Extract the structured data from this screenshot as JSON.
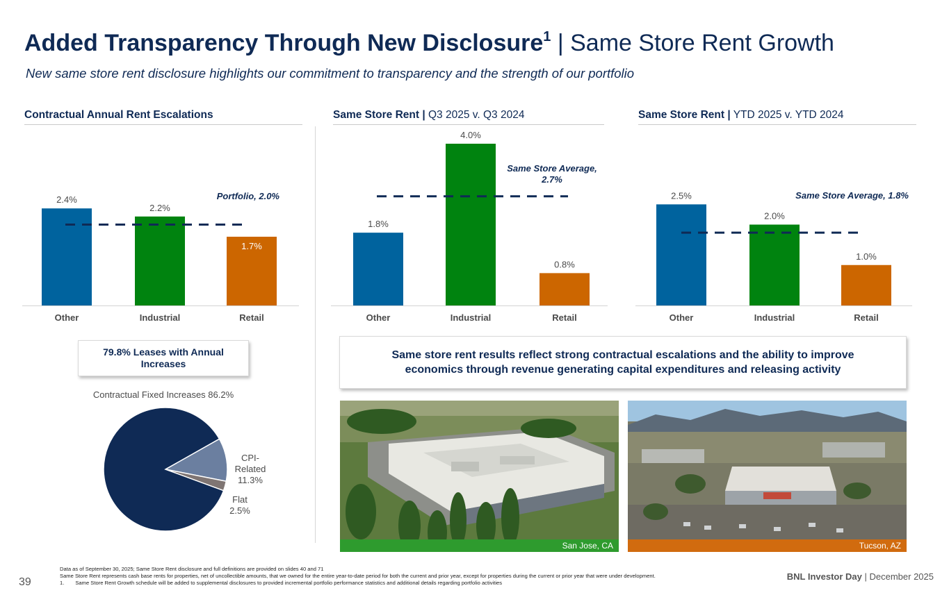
{
  "header": {
    "title_bold": "Added Transparency Through New Disclosure",
    "title_sup": "1",
    "title_rest": " | Same Store Rent Growth",
    "subtitle": "New same store rent disclosure highlights our commitment to transparency and the strength of our portfolio"
  },
  "colors": {
    "other": "#00639e",
    "industrial": "#00830f",
    "retail": "#cc6600",
    "navy": "#0f2a55",
    "slate": "#6b7fa0",
    "gray": "#7f7573"
  },
  "sections": {
    "escalations": {
      "title": "Contractual Annual Rent Escalations"
    },
    "q3": {
      "title_bold": "Same Store Rent |",
      "title_rest": " Q3 2025 v. Q3 2024"
    },
    "ytd": {
      "title_bold": "Same Store Rent |",
      "title_rest": " YTD 2025 v. YTD 2024"
    }
  },
  "chart_data": [
    {
      "type": "bar",
      "title": "Contractual Annual Rent Escalations",
      "categories": [
        "Other",
        "Industrial",
        "Retail"
      ],
      "values": [
        2.4,
        2.2,
        1.7
      ],
      "value_labels": [
        "2.4%",
        "2.2%",
        "1.7%"
      ],
      "ylim": [
        0,
        4.0
      ],
      "reference_line": {
        "value": 2.0,
        "label": "Portfolio, 2.0%"
      }
    },
    {
      "type": "bar",
      "title": "Same Store Rent | Q3 2025 v. Q3 2024",
      "categories": [
        "Other",
        "Industrial",
        "Retail"
      ],
      "values": [
        1.8,
        4.0,
        0.8
      ],
      "value_labels": [
        "1.8%",
        "4.0%",
        "0.8%"
      ],
      "ylim": [
        0,
        4.0
      ],
      "reference_line": {
        "value": 2.7,
        "label_line1": "Same Store Average,",
        "label_line2": "2.7%"
      }
    },
    {
      "type": "bar",
      "title": "Same Store Rent | YTD 2025 v. YTD 2024",
      "categories": [
        "Other",
        "Industrial",
        "Retail"
      ],
      "values": [
        2.5,
        2.0,
        1.0
      ],
      "value_labels": [
        "2.5%",
        "2.0%",
        "1.0%"
      ],
      "ylim": [
        0,
        4.0
      ],
      "reference_line": {
        "value": 1.8,
        "label": "Same Store Average, 1.8%"
      }
    },
    {
      "type": "pie",
      "title": "79.8% Leases with Annual Increases",
      "slices": [
        {
          "label": "Contractual Fixed Increases 86.2%",
          "value": 86.2
        },
        {
          "label_lines": [
            "CPI-",
            "Related",
            "11.3%"
          ],
          "value": 11.3
        },
        {
          "label_lines": [
            "Flat",
            "2.5%"
          ],
          "value": 2.5
        }
      ]
    }
  ],
  "callouts": {
    "leases": "79.8% Leases with Annual Increases",
    "results": "Same store rent results reflect strong contractual escalations and the ability to improve economics through revenue generating capital expenditures and releasing activity"
  },
  "photos": [
    {
      "caption": "San Jose, CA"
    },
    {
      "caption": "Tucson, AZ"
    }
  ],
  "footnotes": {
    "line1": "Data as of September 30, 2025; Same Store Rent disclosure and full definitions are provided on slides 40 and 71",
    "line2": "Same Store Rent represents cash base rents for properties, net of uncollectible amounts, that we owned for the entire year-to-date period for both the current and prior year, except for properties during the current or prior year that were under development.",
    "line3_num": "1.",
    "line3": "Same Store Rent Growth schedule will be added to supplemental disclosures to provided incremental portfolio performance statistics and additional details regarding portfolio activities"
  },
  "footer": {
    "page": "39",
    "brand_bold": "BNL Investor Day",
    "brand_rest": " | December 2025"
  }
}
